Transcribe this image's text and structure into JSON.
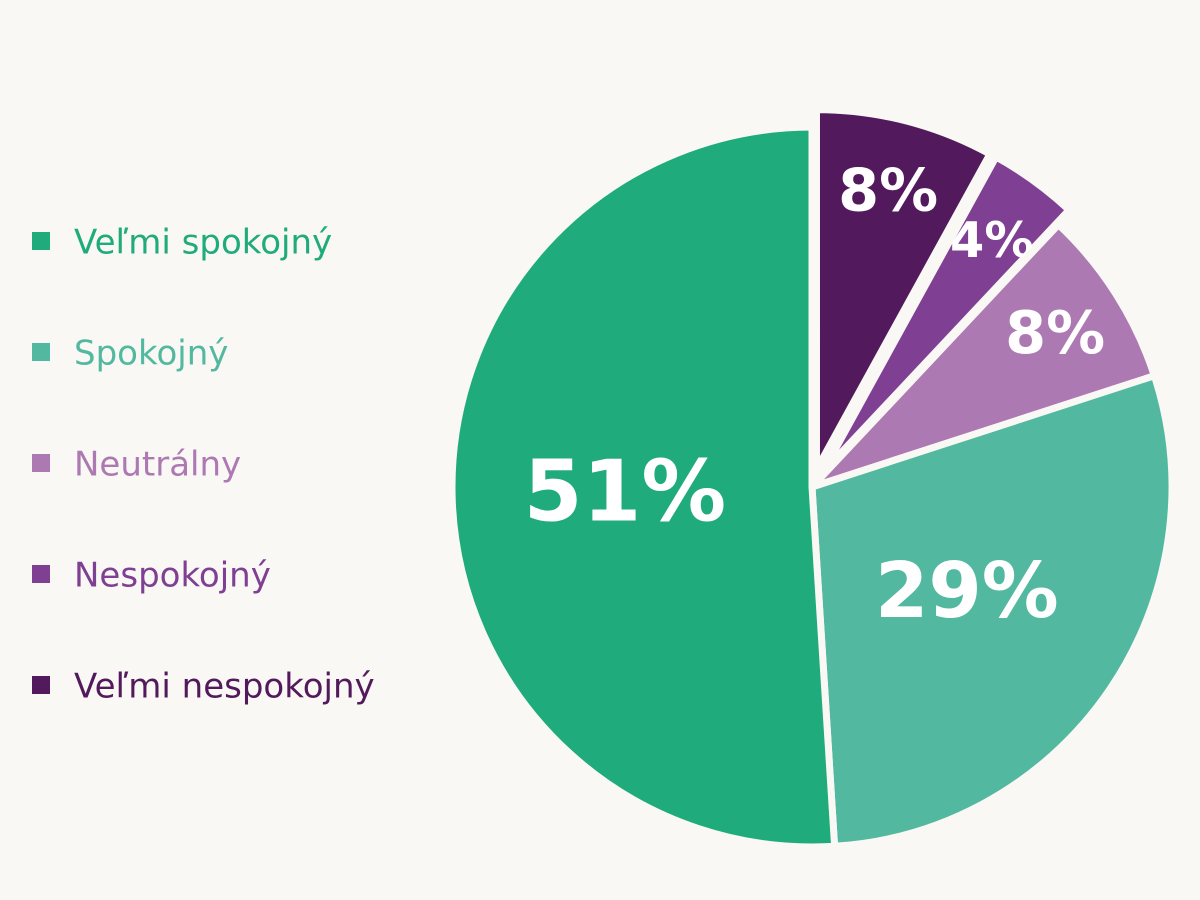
{
  "chart_data": {
    "type": "pie",
    "categories": [
      "Veľmi spokojný",
      "Spokojný",
      "Neutrálny",
      "Nespokojný",
      "Veľmi nespokojný"
    ],
    "values": [
      51,
      29,
      8,
      4,
      8
    ],
    "value_labels": [
      "51%",
      "29%",
      "8%",
      "4%",
      "8%"
    ],
    "colors": [
      "#1fab7b",
      "#52b9a0",
      "#ad79b3",
      "#7f3f93",
      "#521a5c"
    ],
    "legend": "left"
  }
}
